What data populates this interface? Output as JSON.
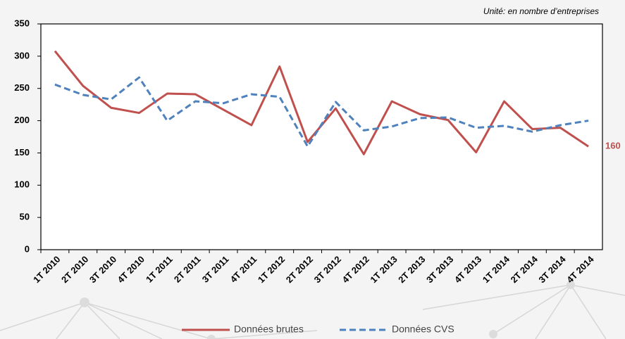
{
  "chart_data": {
    "type": "line",
    "annotation": "Unité: en nombre d’entreprises",
    "categories": [
      "1T 2010",
      "2T 2010",
      "3T 2010",
      "4T 2010",
      "1T 2011",
      "2T 2011",
      "3T 2011",
      "4T 2011",
      "1T 2012",
      "2T 2012",
      "3T 2012",
      "4T 2012",
      "1T 2013",
      "2T 2013",
      "3T 2013",
      "4T 2013",
      "1T 2014",
      "2T 2014",
      "3T 2014",
      "4T 2014"
    ],
    "series": [
      {
        "name": "Données brutes",
        "color": "#c0504d",
        "dashed": false,
        "values": [
          308,
          254,
          220,
          212,
          242,
          241,
          217,
          193,
          284,
          167,
          219,
          148,
          230,
          210,
          201,
          151,
          230,
          187,
          189,
          160
        ]
      },
      {
        "name": "Données CVS",
        "color": "#4f81bd",
        "dashed": true,
        "values": [
          256,
          240,
          233,
          267,
          200,
          230,
          227,
          241,
          237,
          160,
          229,
          185,
          191,
          204,
          205,
          189,
          192,
          183,
          193,
          200
        ]
      }
    ],
    "ylim": [
      0,
      350
    ],
    "yticks": [
      0,
      50,
      100,
      150,
      200,
      250,
      300,
      350
    ],
    "grid": false,
    "legend": "bottom"
  }
}
